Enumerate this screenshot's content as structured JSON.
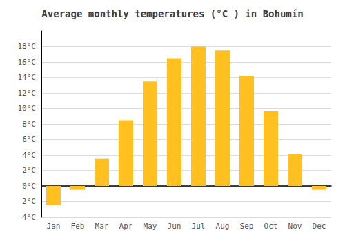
{
  "chart_data": {
    "type": "bar",
    "title": "Average monthly temperatures (°C ) in Bohumín",
    "categories": [
      "Jan",
      "Feb",
      "Mar",
      "Apr",
      "May",
      "Jun",
      "Jul",
      "Aug",
      "Sep",
      "Oct",
      "Nov",
      "Dec"
    ],
    "values": [
      -2.5,
      -0.5,
      3.5,
      8.5,
      13.5,
      16.5,
      18.0,
      17.5,
      14.2,
      9.7,
      4.1,
      -0.5
    ],
    "color": "#FFC020",
    "ylim": [
      -4,
      20
    ],
    "yticks": [
      {
        "value": -4,
        "label": "-4°C"
      },
      {
        "value": -2,
        "label": "-2°C"
      },
      {
        "value": 0,
        "label": "0°C"
      },
      {
        "value": 2,
        "label": "2°C"
      },
      {
        "value": 4,
        "label": "4°C"
      },
      {
        "value": 6,
        "label": "6°C"
      },
      {
        "value": 8,
        "label": "8°C"
      },
      {
        "value": 10,
        "label": "10°C"
      },
      {
        "value": 12,
        "label": "12°C"
      },
      {
        "value": 14,
        "label": "14°C"
      },
      {
        "value": 16,
        "label": "16°C"
      },
      {
        "value": 18,
        "label": "18°C"
      }
    ],
    "grid": true
  }
}
